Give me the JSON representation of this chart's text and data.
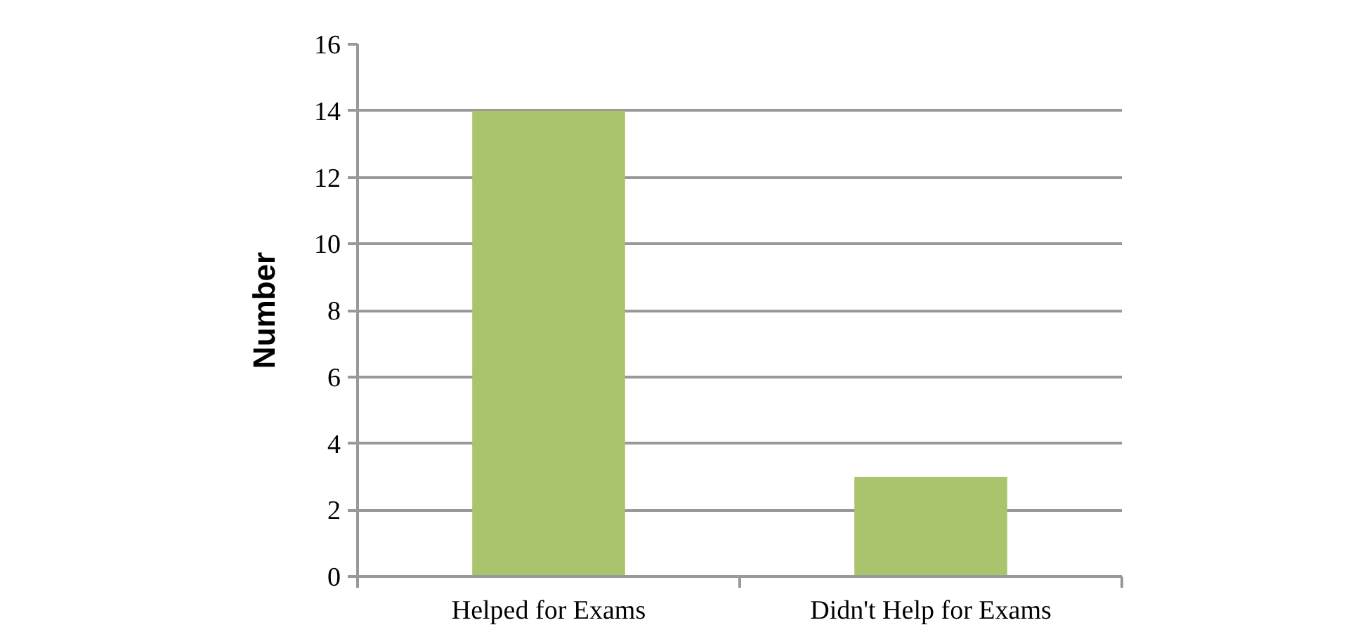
{
  "chart_data": {
    "type": "bar",
    "ylabel": "Number",
    "categories": [
      "Helped for Exams",
      "Didn't Help for Exams"
    ],
    "values": [
      14,
      3
    ],
    "color": "#a9c46c",
    "ylim": [
      0,
      16
    ],
    "yticks": [
      0,
      2,
      4,
      6,
      8,
      10,
      12,
      14,
      16
    ],
    "grid": "y"
  }
}
